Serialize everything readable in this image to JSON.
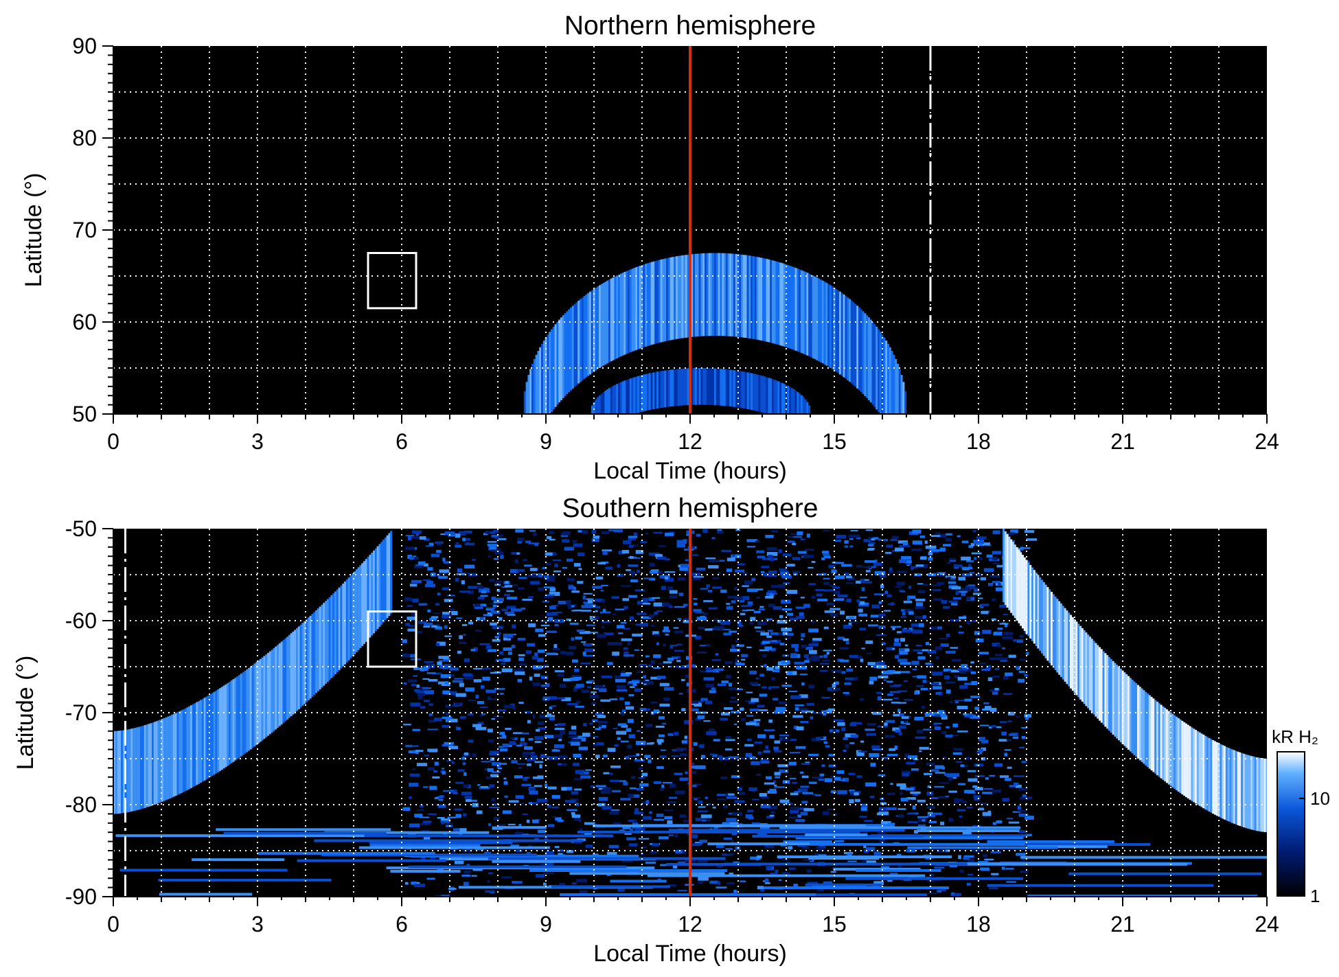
{
  "chart_data": [
    {
      "type": "heatmap",
      "title": "Northern hemisphere",
      "xlabel": "Local Time (hours)",
      "ylabel": "Latitude (°)",
      "xlim": [
        0,
        24
      ],
      "ylim": [
        50,
        90
      ],
      "xticks": [
        "0",
        "3",
        "6",
        "9",
        "12",
        "15",
        "18",
        "21",
        "24"
      ],
      "yticks": [
        "50",
        "60",
        "70",
        "80",
        "90"
      ],
      "grid": true,
      "grid_step": {
        "x_hours": 1,
        "y_degrees": 5
      },
      "colormap": "black-blue-white",
      "background": "#000000",
      "reference_line": {
        "x": 12,
        "color": "#d03010"
      },
      "dashed_line": {
        "x": 17,
        "color": "#ffffff"
      },
      "box": {
        "x": [
          5.3,
          6.3
        ],
        "y": [
          61.5,
          67.5
        ],
        "color": "#ffffff"
      },
      "emission_features": [
        {
          "name": "main oval arc",
          "x_range": [
            8.5,
            16.5
          ],
          "peak_lat": 67.5,
          "base_lat": 50,
          "intensity": "medium"
        },
        {
          "name": "inner arc",
          "x_range": [
            9.9,
            14.5
          ],
          "peak_lat": 55,
          "base_lat": 50,
          "intensity": "low"
        }
      ]
    },
    {
      "type": "heatmap",
      "title": "Southern hemisphere",
      "xlabel": "Local Time (hours)",
      "ylabel": "Latitude (°)",
      "xlim": [
        0,
        24
      ],
      "ylim": [
        -90,
        -50
      ],
      "xticks": [
        "0",
        "3",
        "6",
        "9",
        "12",
        "15",
        "18",
        "21",
        "24"
      ],
      "yticks": [
        "-90",
        "-80",
        "-70",
        "-60",
        "-50"
      ],
      "grid": true,
      "grid_step": {
        "x_hours": 1,
        "y_degrees": 5
      },
      "colormap": "black-blue-white",
      "background": "#000000",
      "reference_line": {
        "x": 12,
        "color": "#d03010"
      },
      "dashed_line": {
        "x": 0.25,
        "color": "#ffffff"
      },
      "box": {
        "x": [
          5.3,
          6.3
        ],
        "y": [
          -65,
          -59
        ],
        "color": "#ffffff"
      },
      "emission_features": [
        {
          "name": "dawn oval",
          "x_range": [
            0,
            5.8
          ],
          "lat_at_edge": -72,
          "lat_at_top": -50,
          "intensity": "medium"
        },
        {
          "name": "dusk oval",
          "x_range": [
            18.5,
            24
          ],
          "lat_at_edge": -75,
          "lat_at_top": -50,
          "intensity": "high"
        },
        {
          "name": "polar cap emission",
          "x_range": [
            6,
            19
          ],
          "lat_range": [
            -90,
            -50
          ],
          "intensity": "low-medium"
        }
      ],
      "colorbar": {
        "label": "kR H₂",
        "scale": "log",
        "range": [
          1,
          30
        ],
        "ticks": [
          "1",
          "10"
        ]
      }
    }
  ]
}
